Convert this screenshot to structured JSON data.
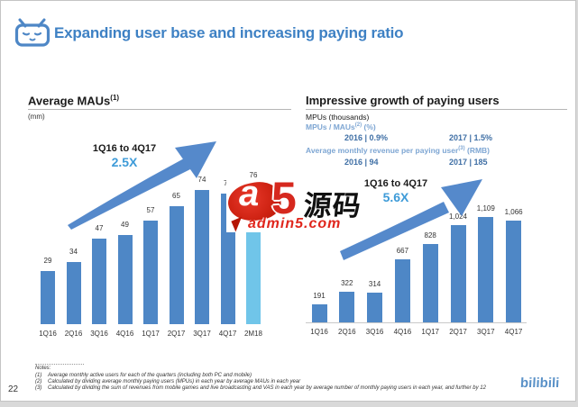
{
  "header": {
    "title": "Expanding user base and increasing paying ratio"
  },
  "left_panel": {
    "title": "Average MAUs",
    "title_sup": "(1)",
    "unit": "(mm)",
    "growth_period": "1Q16 to 4Q17",
    "growth_multiple": "2.5X"
  },
  "right_panel": {
    "title": "Impressive growth of paying users",
    "unit": "MPUs (thousands)",
    "ratio_label": "MPUs / MAUs",
    "ratio_sup": "(2)",
    "ratio_suffix": " (%)",
    "ratio_2016": "2016 | 0.9%",
    "ratio_2017": "2017 | 1.5%",
    "arpu_label": "Average monthly revenue per paying user",
    "arpu_sup": "(3)",
    "arpu_suffix": " (RMB)",
    "arpu_2016": "2016 | 94",
    "arpu_2017": "2017 | 185",
    "growth_period": "1Q16 to 4Q17",
    "growth_multiple": "5.6X"
  },
  "chart_data": [
    {
      "type": "bar",
      "title": "Average MAUs",
      "ylabel": "Average MAUs (mm)",
      "xlabel": "",
      "categories": [
        "1Q16",
        "2Q16",
        "3Q16",
        "4Q16",
        "1Q17",
        "2Q17",
        "3Q17",
        "4Q17",
        "2M18"
      ],
      "values": [
        29,
        34,
        47,
        49,
        57,
        65,
        74,
        72,
        76
      ],
      "labels": [
        "29",
        "34",
        "47",
        "49",
        "57",
        "65",
        "74",
        "72",
        "76"
      ],
      "annotation": "1Q16 to 4Q17: 2.5X",
      "ylim": [
        0,
        80
      ],
      "grid": false,
      "legend": false,
      "bar_color": "#4E87C6",
      "highlight_last": true,
      "highlight_color": "#70C5E9"
    },
    {
      "type": "bar",
      "title": "Impressive growth of paying users",
      "ylabel": "MPUs (thousands)",
      "xlabel": "",
      "categories": [
        "1Q16",
        "2Q16",
        "3Q16",
        "4Q16",
        "1Q17",
        "2Q17",
        "3Q17",
        "4Q17"
      ],
      "values": [
        191,
        322,
        314,
        667,
        828,
        1024,
        1109,
        1066
      ],
      "labels": [
        "191",
        "322",
        "314",
        "667",
        "828",
        "1,024",
        "1,109",
        "1,066"
      ],
      "annotation": "1Q16 to 4Q17: 5.6X",
      "ylim": [
        0,
        1200
      ],
      "grid": false,
      "legend": false,
      "bar_color": "#4E87C6",
      "highlight_last": false,
      "highlight_color": "#70C5E9"
    }
  ],
  "watermark": {
    "logo_a": "a",
    "logo_5": "5",
    "logo_cn": "源码",
    "site": "admin5.com"
  },
  "footer": {
    "notes_label": "Notes:",
    "notes": [
      {
        "num": "(1)",
        "text": "Average monthly active users for each of the quarters (including both PC and mobile)"
      },
      {
        "num": "(2)",
        "text": "Calculated by dividing average monthly paying users (MPUs) in each year by average MAUs in each year"
      },
      {
        "num": "(3)",
        "text": "Calculated by dividing the sum of revenues from mobile games and live broadcasting and VAS in each year by average number of monthly paying users in each year, and further by 12"
      }
    ],
    "page_number": "22",
    "logo_text": "bilibili"
  },
  "colors": {
    "accent_blue": "#3E81C4",
    "bar_blue": "#4E87C6",
    "bar_light_blue": "#70C5E9",
    "growth_blue": "#3E9BD8",
    "sub_label_blue": "#7EA6D3",
    "sub_value_blue": "#3F6FA5",
    "watermark_red": "#D6281E"
  }
}
